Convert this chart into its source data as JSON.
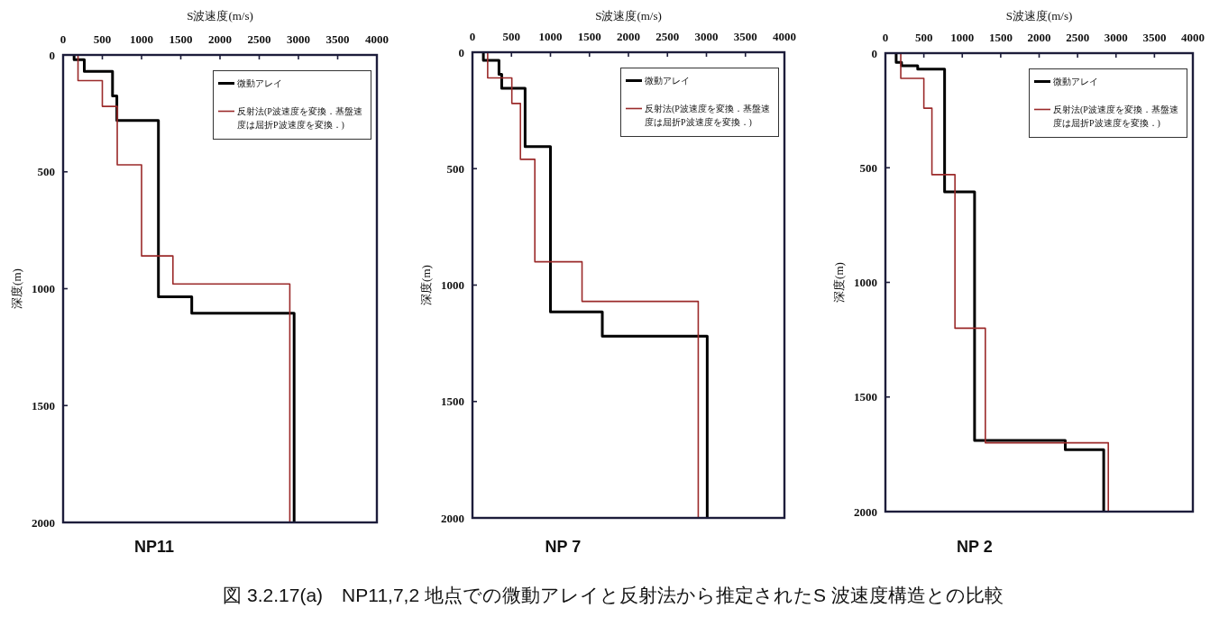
{
  "chart_data": [
    {
      "type": "line",
      "title": "NP11",
      "xlabel": "S波速度(m/s)",
      "ylabel": "深度(m)",
      "xlim": [
        0,
        4000
      ],
      "xticks": [
        0,
        500,
        1000,
        1500,
        2000,
        2500,
        3000,
        3500,
        4000
      ],
      "ylim": [
        2000,
        0
      ],
      "yticks": [
        0,
        500,
        1000,
        1500,
        2000
      ],
      "legend": "top right",
      "series": [
        {
          "name": "微動アレイ",
          "color": "#000000",
          "x": [
            140,
            140,
            270,
            270,
            630,
            630,
            685,
            685,
            1215,
            1215,
            1640,
            1640,
            2945,
            2945
          ],
          "values": [
            0,
            20,
            20,
            70,
            70,
            175,
            175,
            280,
            280,
            1035,
            1035,
            1105,
            1105,
            2000
          ]
        },
        {
          "name": "反射法(P波速度を変換．基盤速度は屈折P波速度を変換．)",
          "color": "#9b2a2a",
          "x": [
            190,
            190,
            500,
            500,
            690,
            690,
            1000,
            1000,
            1400,
            1400,
            2890,
            2890
          ],
          "values": [
            0,
            110,
            110,
            220,
            220,
            470,
            470,
            860,
            860,
            980,
            980,
            2000
          ]
        }
      ]
    },
    {
      "type": "line",
      "title": "NP 7",
      "xlabel": "S波速度(m/s)",
      "ylabel": "深度(m)",
      "xlim": [
        0,
        4000
      ],
      "xticks": [
        0,
        500,
        1000,
        1500,
        2000,
        2500,
        3000,
        3500,
        4000
      ],
      "ylim": [
        2000,
        0
      ],
      "yticks": [
        0,
        500,
        1000,
        1500,
        2000
      ],
      "legend": "top right",
      "series": [
        {
          "name": "微動アレイ",
          "color": "#000000",
          "x": [
            140,
            140,
            340,
            340,
            375,
            375,
            675,
            675,
            1000,
            1000,
            1665,
            1665,
            3010,
            3010
          ],
          "values": [
            0,
            35,
            35,
            95,
            95,
            155,
            155,
            405,
            405,
            1115,
            1115,
            1220,
            1220,
            2000
          ]
        },
        {
          "name": "反射法(P波速度を変換．基盤速度は屈折P波速度を変換．)",
          "color": "#9b2a2a",
          "x": [
            195,
            195,
            505,
            505,
            615,
            615,
            800,
            800,
            1405,
            1405,
            2895,
            2895
          ],
          "values": [
            0,
            110,
            110,
            220,
            220,
            460,
            460,
            900,
            900,
            1070,
            1070,
            2000
          ]
        }
      ]
    },
    {
      "type": "line",
      "title": "NP 2",
      "xlabel": "S波速度(m/s)",
      "ylabel": "深度(m)",
      "xlim": [
        0,
        4000
      ],
      "xticks": [
        0,
        500,
        1000,
        1500,
        2000,
        2500,
        3000,
        3500,
        4000
      ],
      "ylim": [
        2000,
        0
      ],
      "yticks": [
        0,
        500,
        1000,
        1500,
        2000
      ],
      "legend": "top right",
      "series": [
        {
          "name": "微動アレイ",
          "color": "#000000",
          "x": [
            140,
            140,
            210,
            210,
            420,
            420,
            770,
            770,
            1160,
            1160,
            2340,
            2340,
            2840,
            2840
          ],
          "values": [
            0,
            40,
            40,
            55,
            55,
            70,
            70,
            605,
            605,
            1690,
            1690,
            1730,
            1730,
            2000
          ]
        },
        {
          "name": "反射法(P波速度を変換．基盤速度は屈折P波速度を変換．)",
          "color": "#9b2a2a",
          "x": [
            200,
            200,
            500,
            500,
            605,
            605,
            905,
            905,
            1300,
            1300,
            2900,
            2900
          ],
          "values": [
            0,
            110,
            110,
            240,
            240,
            530,
            530,
            1200,
            1200,
            1700,
            1700,
            2000
          ]
        }
      ],
      "annotations": [
        "図 3.2.17(a)　NP11,7,2 地点での微動アレイと反射法から推定されたS 波速度構造との比較"
      ]
    }
  ]
}
